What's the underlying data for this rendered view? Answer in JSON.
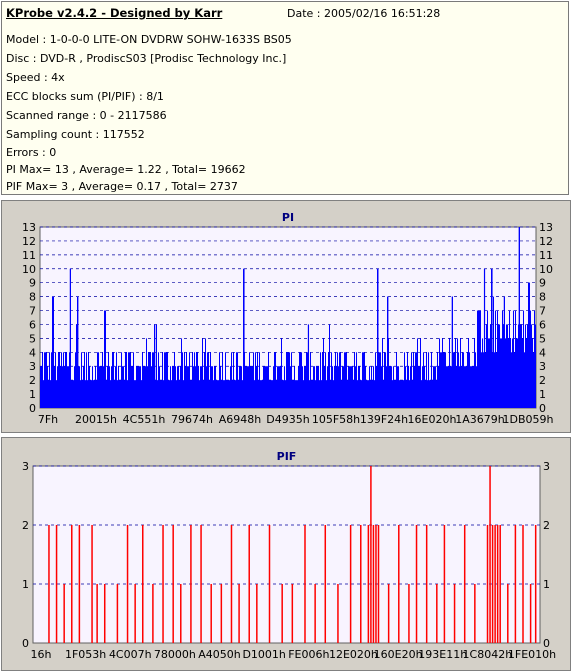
{
  "info": {
    "title": "KProbe v2.4.2 - Designed by Karr",
    "date": "Date : 2005/02/16 16:51:28",
    "lines": [
      "Model : 1-0-0-0 LITE-ON DVDRW SOHW-1633S BS05",
      "Disc : DVD-R , ProdiscS03   [Prodisc Technology Inc.]",
      "Speed : 4x",
      "ECC blocks sum (PI/PIF) : 8/1",
      "Scanned range : 0 - 2117586",
      "Sampling count : 117552",
      "Errors : 0",
      "PI Max= 13 , Average= 1.22 , Total= 19662",
      "PIF Max= 3 , Average= 0.17 , Total= 2737"
    ]
  },
  "colors": {
    "plot_bg": "#f8f4ff",
    "bar": "#0000ff",
    "bar_pif": "#ff0000",
    "title_color": "#000080",
    "grid": "#0000a0"
  },
  "chart_data": [
    {
      "type": "bar",
      "title": "PI",
      "ylim": [
        0,
        13
      ],
      "yticks": [
        0,
        1,
        2,
        3,
        4,
        5,
        6,
        7,
        8,
        9,
        10,
        11,
        12,
        13
      ],
      "xticks": [
        "7Fh",
        "20015h",
        "4C551h",
        "79674h",
        "A6948h",
        "D4935h",
        "105F58h",
        "139F24h",
        "16E020h",
        "1A3679h",
        "1DB059h"
      ],
      "grid": "dashed horizontal",
      "color": "#0000ff",
      "series_profile": {
        "baseline": [
          2,
          3
        ],
        "segments": [
          {
            "from": 0.0,
            "to": 0.68,
            "typical": [
              2,
              4
            ]
          },
          {
            "from": 0.68,
            "to": 0.8,
            "typical": [
              2,
              4
            ]
          },
          {
            "from": 0.8,
            "to": 0.88,
            "typical": [
              3,
              5
            ]
          },
          {
            "from": 0.88,
            "to": 1.0,
            "typical": [
              4,
              7
            ]
          }
        ],
        "peaks": [
          {
            "pos": 0.025,
            "v": 8
          },
          {
            "pos": 0.06,
            "v": 10
          },
          {
            "pos": 0.075,
            "v": 8
          },
          {
            "pos": 0.13,
            "v": 7
          },
          {
            "pos": 0.23,
            "v": 6
          },
          {
            "pos": 0.41,
            "v": 10
          },
          {
            "pos": 0.54,
            "v": 6
          },
          {
            "pos": 0.68,
            "v": 10
          },
          {
            "pos": 0.7,
            "v": 8
          },
          {
            "pos": 0.83,
            "v": 8
          },
          {
            "pos": 0.895,
            "v": 10
          },
          {
            "pos": 0.91,
            "v": 10
          },
          {
            "pos": 0.935,
            "v": 8
          },
          {
            "pos": 0.965,
            "v": 13
          },
          {
            "pos": 0.985,
            "v": 9
          }
        ]
      }
    },
    {
      "type": "bar",
      "title": "PIF",
      "ylim": [
        0,
        3
      ],
      "yticks": [
        0,
        1,
        2,
        3
      ],
      "xticks": [
        "16h",
        "1F053h",
        "4C007h",
        "78000h",
        "A4050h",
        "D1001h",
        "FE006h",
        "12E020h",
        "160E20h",
        "193E11h",
        "1C8042h",
        "1FE010h"
      ],
      "grid": "dashed horizontal",
      "color": "#ff0000",
      "series_profile": {
        "values_at": [
          {
            "pos": 0.03,
            "v": 2
          },
          {
            "pos": 0.045,
            "v": 2
          },
          {
            "pos": 0.06,
            "v": 1
          },
          {
            "pos": 0.075,
            "v": 2
          },
          {
            "pos": 0.09,
            "v": 2
          },
          {
            "pos": 0.115,
            "v": 2
          },
          {
            "pos": 0.125,
            "v": 1
          },
          {
            "pos": 0.14,
            "v": 1
          },
          {
            "pos": 0.165,
            "v": 1
          },
          {
            "pos": 0.185,
            "v": 2
          },
          {
            "pos": 0.2,
            "v": 1
          },
          {
            "pos": 0.215,
            "v": 2
          },
          {
            "pos": 0.235,
            "v": 1
          },
          {
            "pos": 0.255,
            "v": 2
          },
          {
            "pos": 0.275,
            "v": 2
          },
          {
            "pos": 0.29,
            "v": 1
          },
          {
            "pos": 0.31,
            "v": 2
          },
          {
            "pos": 0.33,
            "v": 2
          },
          {
            "pos": 0.35,
            "v": 1
          },
          {
            "pos": 0.37,
            "v": 1
          },
          {
            "pos": 0.39,
            "v": 2
          },
          {
            "pos": 0.405,
            "v": 1
          },
          {
            "pos": 0.425,
            "v": 2
          },
          {
            "pos": 0.44,
            "v": 1
          },
          {
            "pos": 0.465,
            "v": 2
          },
          {
            "pos": 0.49,
            "v": 1
          },
          {
            "pos": 0.51,
            "v": 1
          },
          {
            "pos": 0.535,
            "v": 2
          },
          {
            "pos": 0.555,
            "v": 1
          },
          {
            "pos": 0.575,
            "v": 2
          },
          {
            "pos": 0.6,
            "v": 1
          },
          {
            "pos": 0.625,
            "v": 2
          },
          {
            "pos": 0.645,
            "v": 2
          },
          {
            "pos": 0.66,
            "v": 2
          },
          {
            "pos": 0.665,
            "v": 3
          },
          {
            "pos": 0.67,
            "v": 2
          },
          {
            "pos": 0.675,
            "v": 2
          },
          {
            "pos": 0.68,
            "v": 2
          },
          {
            "pos": 0.7,
            "v": 1
          },
          {
            "pos": 0.72,
            "v": 2
          },
          {
            "pos": 0.74,
            "v": 1
          },
          {
            "pos": 0.755,
            "v": 2
          },
          {
            "pos": 0.775,
            "v": 2
          },
          {
            "pos": 0.795,
            "v": 1
          },
          {
            "pos": 0.81,
            "v": 2
          },
          {
            "pos": 0.83,
            "v": 1
          },
          {
            "pos": 0.85,
            "v": 2
          },
          {
            "pos": 0.87,
            "v": 1
          },
          {
            "pos": 0.895,
            "v": 2
          },
          {
            "pos": 0.9,
            "v": 3
          },
          {
            "pos": 0.905,
            "v": 2
          },
          {
            "pos": 0.91,
            "v": 2
          },
          {
            "pos": 0.915,
            "v": 2
          },
          {
            "pos": 0.92,
            "v": 2
          },
          {
            "pos": 0.935,
            "v": 1
          },
          {
            "pos": 0.95,
            "v": 2
          },
          {
            "pos": 0.965,
            "v": 2
          },
          {
            "pos": 0.98,
            "v": 1
          },
          {
            "pos": 0.99,
            "v": 2
          }
        ]
      }
    }
  ]
}
